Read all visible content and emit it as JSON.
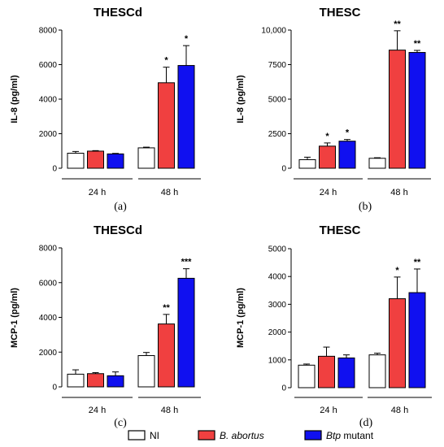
{
  "colors": {
    "NI": "#ffffff",
    "B. abortus": "#f04040",
    "Btp mutant": "#1010f0"
  },
  "legend": {
    "items": [
      {
        "key": "NI",
        "label": "NI",
        "italic": false
      },
      {
        "key": "B. abortus",
        "label": "B. abortus",
        "italic": true
      },
      {
        "key": "Btp mutant",
        "label": "Btp",
        "suffix": " mutant",
        "italic": true
      }
    ]
  },
  "chart_data": [
    {
      "type": "bar",
      "panel": "(a)",
      "title": "THESCd",
      "ylabel": "IL-8 (pg/ml)",
      "ylim": [
        0,
        8000
      ],
      "yticks": [
        "0",
        "2000",
        "4000",
        "6000",
        "8000"
      ],
      "ytick_values": [
        0,
        2000,
        4000,
        6000,
        8000
      ],
      "categories": [
        "24 h",
        "48 h"
      ],
      "series": [
        {
          "name": "NI",
          "values": [
            870,
            1180
          ],
          "errors": [
            100,
            40
          ]
        },
        {
          "name": "B. abortus",
          "values": [
            990,
            4950
          ],
          "errors": [
            30,
            900
          ]
        },
        {
          "name": "Btp mutant",
          "values": [
            830,
            5950
          ],
          "errors": [
            30,
            1150
          ]
        }
      ],
      "annotations": [
        {
          "category": "48 h",
          "series": "B. abortus",
          "text": "*"
        },
        {
          "category": "48 h",
          "series": "Btp mutant",
          "text": "*"
        }
      ]
    },
    {
      "type": "bar",
      "panel": "(b)",
      "title": "THESC",
      "ylabel": "IL-8 (pg/ml)",
      "ylim": [
        0,
        10000
      ],
      "yticks": [
        "0",
        "2500",
        "5000",
        "7500",
        "10,000"
      ],
      "ytick_values": [
        0,
        2500,
        5000,
        7500,
        10000
      ],
      "categories": [
        "24 h",
        "48 h"
      ],
      "series": [
        {
          "name": "NI",
          "values": [
            620,
            720
          ],
          "errors": [
            180,
            40
          ]
        },
        {
          "name": "B. abortus",
          "values": [
            1600,
            8550
          ],
          "errors": [
            230,
            1400
          ]
        },
        {
          "name": "Btp mutant",
          "values": [
            1960,
            8380
          ],
          "errors": [
            120,
            150
          ]
        }
      ],
      "annotations": [
        {
          "category": "24 h",
          "series": "B. abortus",
          "text": "*"
        },
        {
          "category": "24 h",
          "series": "Btp mutant",
          "text": "*"
        },
        {
          "category": "48 h",
          "series": "B. abortus",
          "text": "**"
        },
        {
          "category": "48 h",
          "series": "Btp mutant",
          "text": "**"
        }
      ]
    },
    {
      "type": "bar",
      "panel": "(c)",
      "title": "THESCd",
      "ylabel": "MCP-1 (pg/ml)",
      "ylim": [
        0,
        8000
      ],
      "yticks": [
        "0",
        "2000",
        "4000",
        "6000",
        "8000"
      ],
      "ytick_values": [
        0,
        2000,
        4000,
        6000,
        8000
      ],
      "categories": [
        "24 h",
        "48 h"
      ],
      "series": [
        {
          "name": "NI",
          "values": [
            730,
            1800
          ],
          "errors": [
            250,
            180
          ]
        },
        {
          "name": "B. abortus",
          "values": [
            760,
            3620
          ],
          "errors": [
            60,
            550
          ]
        },
        {
          "name": "Btp mutant",
          "values": [
            640,
            6250
          ],
          "errors": [
            220,
            550
          ]
        }
      ],
      "annotations": [
        {
          "category": "48 h",
          "series": "B. abortus",
          "text": "**"
        },
        {
          "category": "48 h",
          "series": "Btp mutant",
          "text": "***"
        }
      ]
    },
    {
      "type": "bar",
      "panel": "(d)",
      "title": "THESC",
      "ylabel": "MCP-1 (pg/ml)",
      "ylim": [
        0,
        5000
      ],
      "yticks": [
        "0",
        "1000",
        "2000",
        "3000",
        "4000",
        "5000"
      ],
      "ytick_values": [
        0,
        1000,
        2000,
        3000,
        4000,
        5000
      ],
      "categories": [
        "24 h",
        "48 h"
      ],
      "series": [
        {
          "name": "NI",
          "values": [
            810,
            1180
          ],
          "errors": [
            40,
            60
          ]
        },
        {
          "name": "B. abortus",
          "values": [
            1130,
            3200
          ],
          "errors": [
            330,
            780
          ]
        },
        {
          "name": "Btp mutant",
          "values": [
            1070,
            3420
          ],
          "errors": [
            110,
            850
          ]
        }
      ],
      "annotations": [
        {
          "category": "48 h",
          "series": "B. abortus",
          "text": "*"
        },
        {
          "category": "48 h",
          "series": "Btp mutant",
          "text": "**"
        }
      ]
    }
  ]
}
